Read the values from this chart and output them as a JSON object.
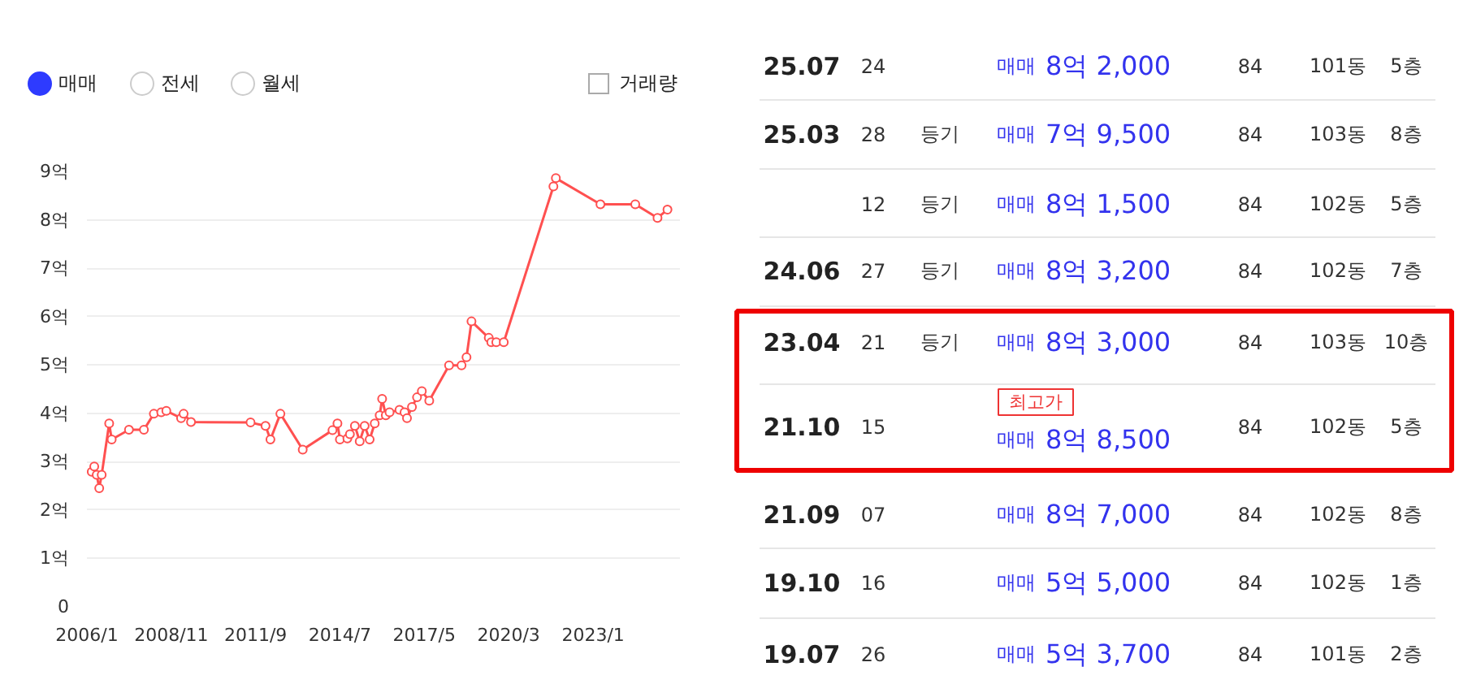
{
  "chart_data": [
    {
      "type": "line",
      "color": "#ff5050",
      "marker": "circle",
      "line_style": "solid",
      "grid": "y",
      "annotations": [
        "매매",
        "전세",
        "월세",
        "거래량"
      ],
      "x": [
        "2006-03-01",
        "2006-04-01",
        "2006-05-01",
        "2006-06-01",
        "2006-07-01",
        "2006-10-01",
        "2006-11-01",
        "2007-06-01",
        "2007-12-01",
        "2008-04-01",
        "2008-07-01",
        "2008-09-01",
        "2009-03-01",
        "2009-04-01",
        "2009-07-01",
        "2011-07-01",
        "2012-01-01",
        "2012-03-01",
        "2012-07-01",
        "2013-04-01",
        "2014-04-01",
        "2014-06-01",
        "2014-07-01",
        "2014-10-01",
        "2014-11-01",
        "2015-01-01",
        "2015-03-01",
        "2015-05-01",
        "2015-07-01",
        "2015-09-01",
        "2015-11-01",
        "2015-12-01",
        "2016-01-15",
        "2016-03-01",
        "2016-07-01",
        "2016-09-01",
        "2016-10-01",
        "2016-12-01",
        "2017-02-01",
        "2017-04-01",
        "2017-07-01",
        "2018-03-01",
        "2018-08-01",
        "2018-10-01",
        "2018-12-01",
        "2019-07-01",
        "2019-08-01",
        "2019-10-01",
        "2020-01-01",
        "2021-09-01",
        "2021-10-01",
        "2023-04-01",
        "2024-06-01",
        "2025-03-01",
        "2025-07-01"
      ],
      "values": [
        2.79,
        2.9,
        2.73,
        2.45,
        2.73,
        3.79,
        3.46,
        3.66,
        3.66,
        3.99,
        4.02,
        4.05,
        3.9,
        3.99,
        3.82,
        3.81,
        3.74,
        3.46,
        3.99,
        3.25,
        3.65,
        3.79,
        3.46,
        3.48,
        3.57,
        3.74,
        3.42,
        3.74,
        3.46,
        3.79,
        3.96,
        4.3,
        3.96,
        4.02,
        4.07,
        4.02,
        3.9,
        4.13,
        4.33,
        4.46,
        4.26,
        4.99,
        4.99,
        5.16,
        5.9,
        5.56,
        5.47,
        5.47,
        5.47,
        8.69,
        8.86,
        8.32,
        8.32,
        8.04,
        8.21
      ],
      "xlim": [
        "2006-01",
        "2025-12"
      ],
      "xticks": [
        {
          "value": "2006-01",
          "label": "2006/1"
        },
        {
          "value": "2008-11",
          "label": "2008/11"
        },
        {
          "value": "2011-09",
          "label": "2011/9"
        },
        {
          "value": "2014-07",
          "label": "2014/7"
        },
        {
          "value": "2017-05",
          "label": "2017/5"
        },
        {
          "value": "2020-03",
          "label": "2020/3"
        },
        {
          "value": "2023-01",
          "label": "2023/1"
        }
      ],
      "ylim": [
        0,
        9
      ],
      "yticks": [
        0,
        {
          "value": 1,
          "label": "1억"
        },
        {
          "value": 2,
          "label": "2억"
        },
        {
          "value": 3,
          "label": "3억"
        },
        {
          "value": 4,
          "label": "4억"
        },
        {
          "value": 5,
          "label": "5억"
        },
        {
          "value": 6,
          "label": "6억"
        },
        {
          "value": 7,
          "label": "7억"
        },
        {
          "value": 8,
          "label": "8억"
        },
        {
          "value": 9,
          "label": "9억"
        }
      ]
    },
    {
      "type": "other",
      "annotations": [
        "25.07\t24\t\t매매 8억 2,000\t84\t101동\t5층",
        "25.03\t28\t등기\t매매 7억 9,500\t84\t103동\t8층",
        "\t12\t등기\t매매 8억 1,500\t84\t102동\t5층",
        "24.06\t27\t등기\t매매 8억 3,200\t84\t102동\t7층",
        "23.04\t21\t등기\t매매 8억 3,000\t84\t103동\t10층",
        "21.10\t15\t\t최고가\n매매 8억 8,500\t84\t102동\t5층",
        "21.09\t07\t\t매매 8억 7,000\t84\t102동\t8층",
        "19.10\t16\t\t매매 5억 5,000\t84\t102동\t1층",
        "19.07\t26\t\t매매 5억 3,700\t84\t101동\t2층"
      ]
    }
  ]
}
